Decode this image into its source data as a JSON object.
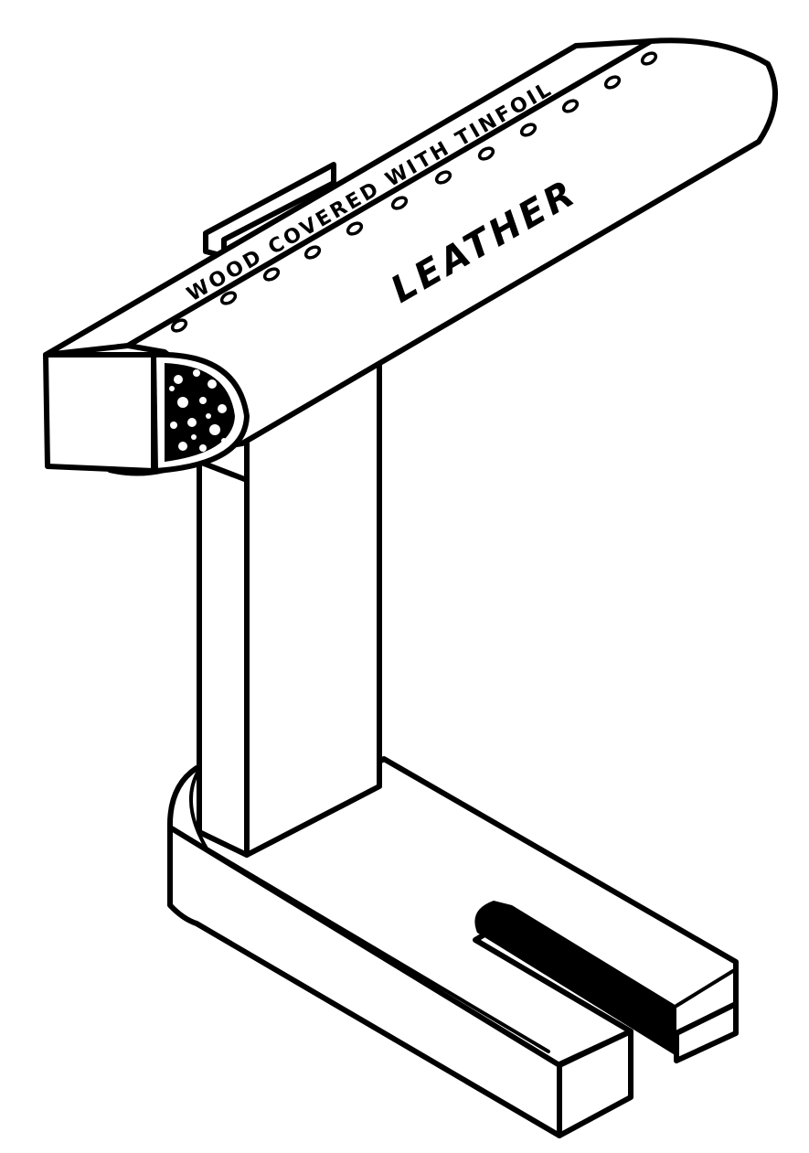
{
  "figure": {
    "labels": {
      "upper_strip": "WOOD COVERED WITH TINFOIL",
      "body": "LEATHER"
    },
    "colors": {
      "ink": "#000000",
      "paper": "#ffffff"
    }
  }
}
